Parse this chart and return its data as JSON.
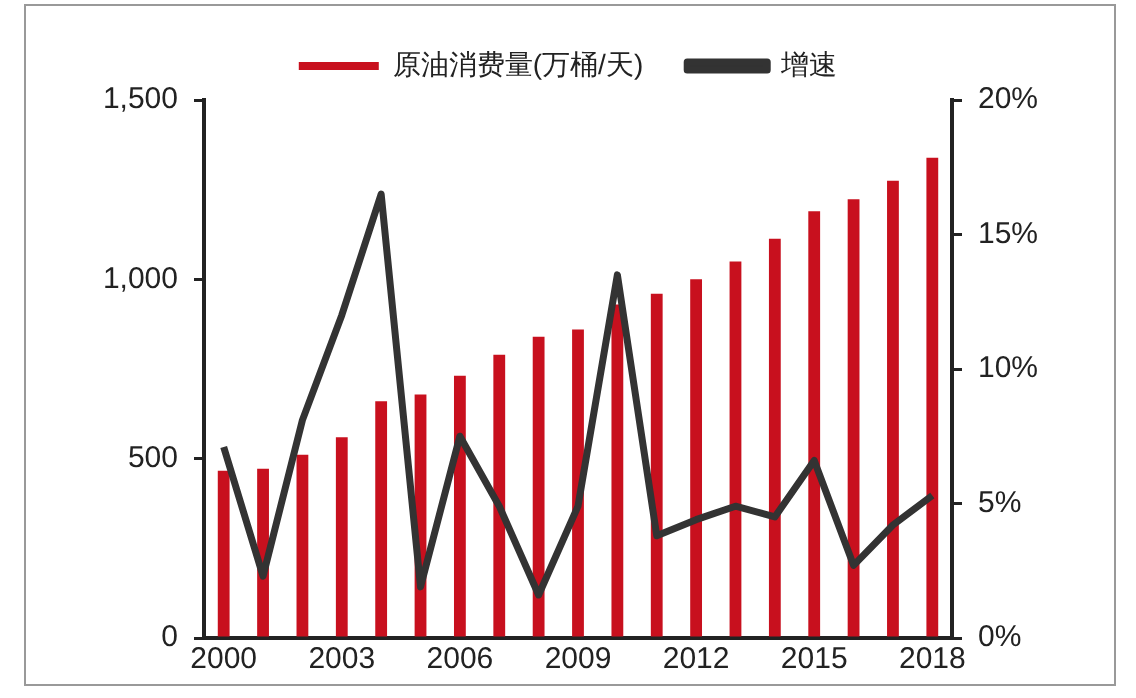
{
  "chart_data": {
    "type": "bar",
    "categories": [
      "2000",
      null,
      null,
      "2003",
      null,
      null,
      "2006",
      null,
      null,
      "2009",
      null,
      null,
      "2012",
      null,
      null,
      "2015",
      null,
      null,
      "2018"
    ],
    "series": [
      {
        "name": "原油消费量(万桶/天)",
        "color": "#c8101e",
        "values": [
          466,
          472,
          511,
          560,
          660,
          679,
          731,
          790,
          840,
          860,
          930,
          960,
          1000,
          1050,
          1113,
          1190,
          1223,
          1275,
          1339
        ]
      },
      {
        "name": "增速",
        "type": "line",
        "axis": "y2",
        "color": "#333333",
        "values": [
          7.1,
          2.3,
          8.1,
          12,
          16.5,
          1.9,
          7.5,
          4.9,
          1.6,
          4.9,
          13.5,
          3.8,
          4.4,
          4.9,
          4.5,
          6.6,
          2.7,
          4.2,
          5.3
        ]
      }
    ],
    "ylim": [
      0,
      1500
    ],
    "yticks": [
      0,
      500,
      {
        "value": 1000,
        "label": "1,000"
      },
      {
        "value": 1500,
        "label": "1,500"
      }
    ],
    "y2lim": [
      0,
      20
    ],
    "y2ticks": [
      {
        "value": 0,
        "label": "0%"
      },
      {
        "value": 5,
        "label": "5%"
      },
      {
        "value": 10,
        "label": "10%"
      },
      {
        "value": 15,
        "label": "15%"
      },
      {
        "value": 20,
        "label": "20%"
      }
    ],
    "legend": "top",
    "marker": "none",
    "grid": false
  }
}
